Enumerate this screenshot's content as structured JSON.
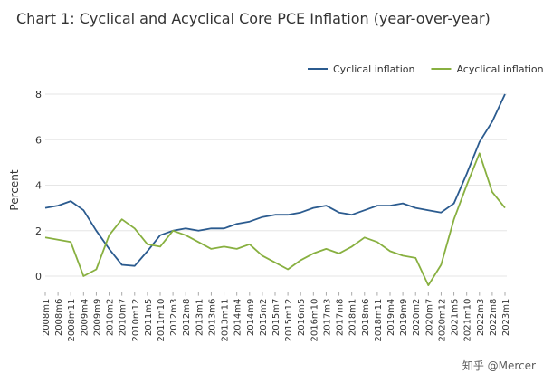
{
  "chart_data": {
    "type": "line",
    "title": "Chart 1: Cyclical and Acyclical Core PCE Inflation (year-over-year)",
    "y_label": "Percent",
    "watermark": "知乎 @Mercer",
    "categories": [
      "2008m1",
      "2008m6",
      "2008m11",
      "2009m4",
      "2009m9",
      "2010m2",
      "2010m7",
      "2010m12",
      "2011m5",
      "2011m10",
      "2012m3",
      "2012m8",
      "2013m1",
      "2013m6",
      "2013m11",
      "2014m4",
      "2014m9",
      "2015m2",
      "2015m7",
      "2015m12",
      "2016m5",
      "2016m10",
      "2017m3",
      "2017m8",
      "2018m1",
      "2018m6",
      "2018m11",
      "2019m4",
      "2019m9",
      "2020m2",
      "2020m7",
      "2020m12",
      "2021m5",
      "2021m10",
      "2022m3",
      "2022m8",
      "2023m1"
    ],
    "series": [
      {
        "name": "Cyclical inflation",
        "color": "#2b5b8f",
        "values": [
          3.0,
          3.1,
          3.3,
          2.9,
          2.0,
          1.2,
          0.5,
          0.45,
          1.1,
          1.8,
          2.0,
          2.1,
          2.0,
          2.1,
          2.1,
          2.3,
          2.4,
          2.6,
          2.7,
          2.7,
          2.8,
          3.0,
          3.1,
          2.8,
          2.7,
          2.9,
          3.1,
          3.1,
          3.2,
          3.0,
          2.9,
          2.8,
          3.2,
          4.5,
          5.9,
          6.8,
          8.0
        ]
      },
      {
        "name": "Acyclical inflation",
        "color": "#88b040",
        "values": [
          1.7,
          1.6,
          1.5,
          0.0,
          0.3,
          1.8,
          2.5,
          2.1,
          1.4,
          1.3,
          2.0,
          1.8,
          1.5,
          1.2,
          1.3,
          1.2,
          1.4,
          0.9,
          0.6,
          0.3,
          0.7,
          1.0,
          1.2,
          1.0,
          1.3,
          1.7,
          1.5,
          1.1,
          0.9,
          0.8,
          -0.4,
          0.5,
          2.5,
          4.0,
          5.4,
          3.7,
          3.0
        ]
      }
    ],
    "ylim": [
      -0.7,
      8.2
    ],
    "yticks": [
      0,
      2,
      4,
      6,
      8
    ],
    "grid": true,
    "legend": "top-right"
  }
}
